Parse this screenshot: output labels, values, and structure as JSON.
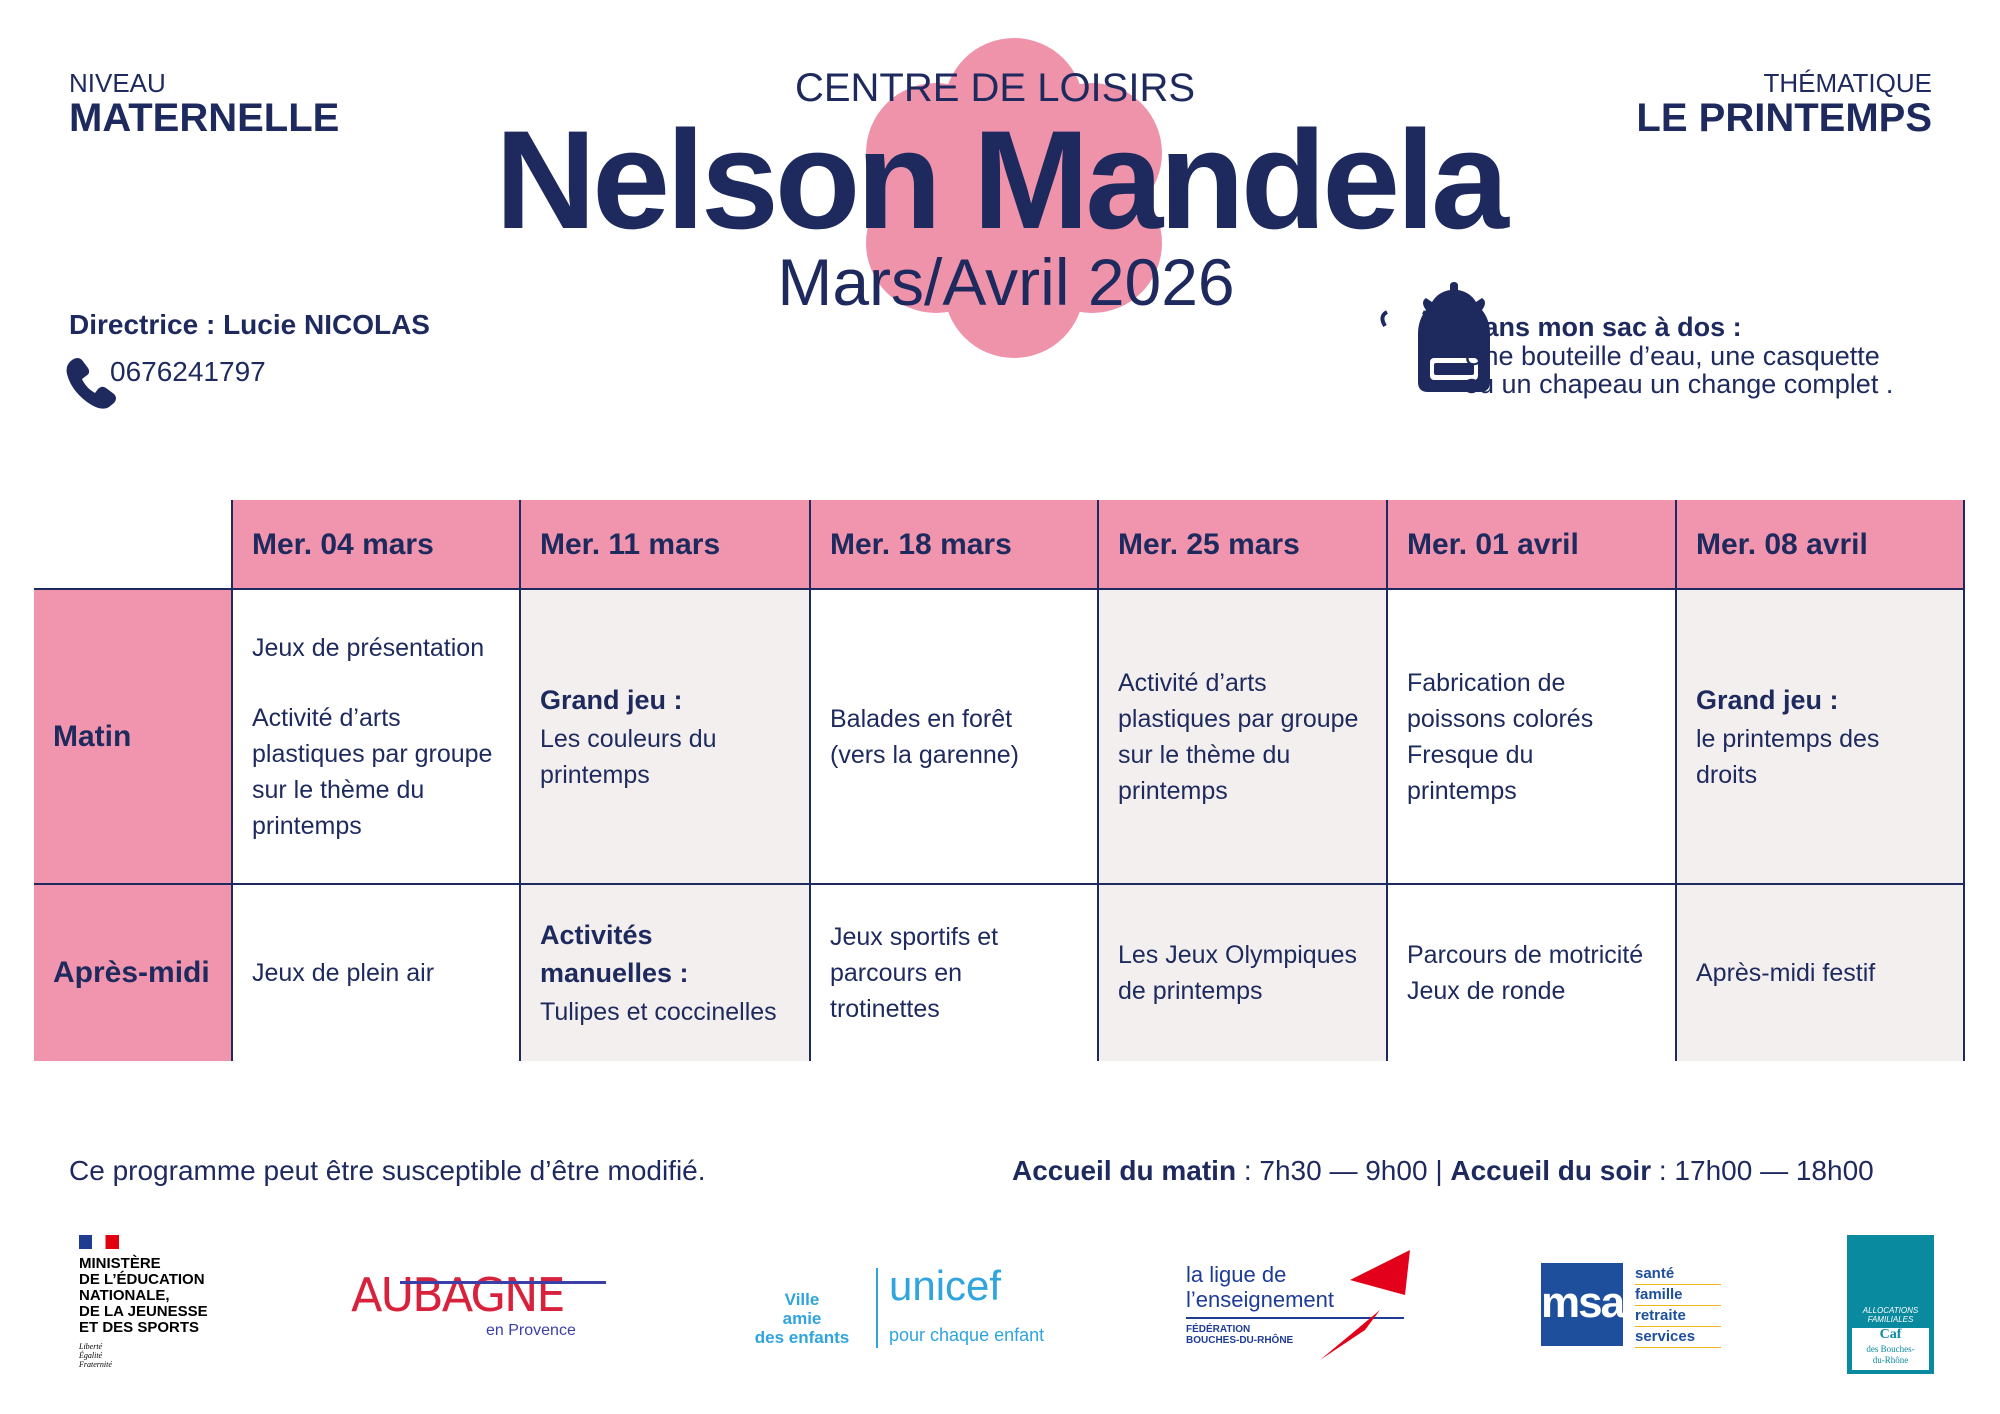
{
  "header": {
    "level_label": "NIVEAU",
    "level": "MATERNELLE",
    "kicker": "CENTRE DE LOISIRS",
    "title": "Nelson Mandela",
    "period": "Mars/Avril 2026",
    "theme_label": "THÉMATIQUE",
    "theme": "LE PRINTEMPS"
  },
  "contact": {
    "director": "Directrice : Lucie NICOLAS",
    "phone": "0676241797"
  },
  "backpack": {
    "title": "Dans mon sac à dos :",
    "lines": [
      "Une bouteille d’eau, une casquette",
      "ou un chapeau un change complet ."
    ]
  },
  "table": {
    "columns": [
      "Mer. 04 mars",
      "Mer. 11 mars",
      "Mer. 18 mars",
      "Mer. 25 mars",
      "Mer. 01 avril",
      "Mer. 08 avril"
    ],
    "rows": [
      {
        "label": "Matin",
        "cells": [
          {
            "paragraphs": [
              [
                "Jeux de présentation"
              ],
              [
                "Activité d’arts",
                "plastiques par groupe",
                "sur le thème du",
                "printemps"
              ]
            ]
          },
          {
            "title": [
              "Grand jeu :"
            ],
            "paragraphs": [
              [
                "Les couleurs du",
                "printemps"
              ]
            ]
          },
          {
            "paragraphs": [
              [
                "Balades en forêt",
                "(vers la garenne)"
              ]
            ]
          },
          {
            "paragraphs": [
              [
                "Activité d’arts",
                "plastiques par groupe",
                "sur le thème du",
                "printemps"
              ]
            ]
          },
          {
            "paragraphs": [
              [
                "Fabrication de",
                "poissons colorés",
                "Fresque du",
                "printemps"
              ]
            ]
          },
          {
            "title": [
              "Grand jeu :"
            ],
            "paragraphs": [
              [
                "le printemps des",
                "droits"
              ]
            ]
          }
        ]
      },
      {
        "label": "Après-midi",
        "cells": [
          {
            "paragraphs": [
              [
                "Jeux de plein air"
              ]
            ]
          },
          {
            "title": [
              "Activités",
              "manuelles :"
            ],
            "paragraphs": [
              [
                "Tulipes et coccinelles"
              ]
            ]
          },
          {
            "paragraphs": [
              [
                "Jeux sportifs et",
                "parcours en",
                "trotinettes"
              ]
            ]
          },
          {
            "paragraphs": [
              [
                "Les Jeux Olympiques",
                "de printemps"
              ]
            ]
          },
          {
            "paragraphs": [
              [
                "Parcours de motricité",
                "Jeux de ronde"
              ]
            ]
          },
          {
            "paragraphs": [
              [
                "Après-midi festif"
              ]
            ]
          }
        ]
      }
    ]
  },
  "footer": {
    "note": "Ce programme peut être susceptible d’être modifié.",
    "morning_label": "Accueil du matin",
    "morning_time": ": 7h30 — 9h00",
    "separator": "|",
    "evening_label": "Accueil du soir",
    "evening_time": ": 17h00 — 18h00"
  },
  "logos": {
    "ministry": {
      "lines": [
        "MINISTÈRE",
        "DE L’ÉDUCATION",
        "NATIONALE,",
        "DE LA JEUNESSE",
        "ET DES SPORTS"
      ],
      "motto": [
        "Liberté",
        "Égalité",
        "Fraternité"
      ]
    },
    "aubagne": {
      "name": "AUBAGNE",
      "sub": "en Provence"
    },
    "unicef": {
      "city": [
        "Ville",
        "amie",
        "des enfants"
      ],
      "name": "unicef",
      "tagline": "pour chaque enfant"
    },
    "ligue": {
      "lines": [
        "la ligue de",
        "l’enseignement"
      ],
      "sub": [
        "FÉDÉRATION",
        "BOUCHES-DU-RHÔNE"
      ]
    },
    "msa": {
      "name": "msa",
      "lines": [
        "santé",
        "famille",
        "retraite",
        "services"
      ]
    },
    "caf": {
      "top": "ALLOCATIONS FAMILIALES",
      "name": "Caf",
      "sub": [
        "des Bouches-",
        "du-Rhône"
      ]
    }
  }
}
